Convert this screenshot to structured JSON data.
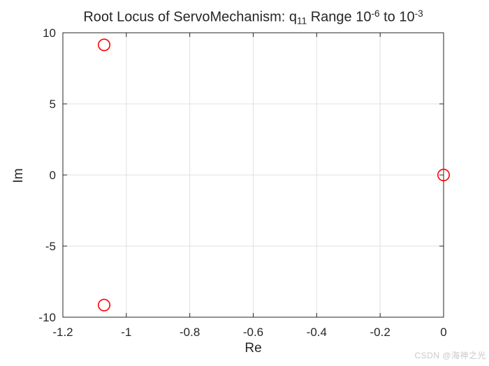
{
  "figure": {
    "background": "#ffffff"
  },
  "title": {
    "plain": "Root Locus of ServoMechanism: q11 Range 10^-6 to 10^-3",
    "segments": [
      {
        "text": "Root Locus of ServoMechanism: q",
        "style": "normal"
      },
      {
        "text": "11",
        "style": "sub"
      },
      {
        "text": " Range 10",
        "style": "normal"
      },
      {
        "text": "-6",
        "style": "sup"
      },
      {
        "text": " to 10",
        "style": "normal"
      },
      {
        "text": "-3",
        "style": "sup"
      }
    ]
  },
  "watermark": {
    "text": "CSDN @海神之光",
    "color": "#c9c9c9"
  },
  "chart_data": {
    "type": "scatter",
    "title": "Root Locus of ServoMechanism: q_{11} Range 10^{-6} to 10^{-3}",
    "xlabel": "Re",
    "ylabel": "Im",
    "xlim": [
      -1.2,
      0
    ],
    "ylim": [
      -10,
      10
    ],
    "xticks": [
      -1.2,
      -1,
      -0.8,
      -0.6,
      -0.4,
      -0.2,
      0
    ],
    "xtick_labels": [
      "-1.2",
      "-1",
      "-0.8",
      "-0.6",
      "-0.4",
      "-0.2",
      "0"
    ],
    "yticks": [
      10,
      5,
      0,
      -5,
      -10
    ],
    "ytick_labels": [
      "10",
      "5",
      "0",
      "-5",
      "-10"
    ],
    "grid": true,
    "legend": "none",
    "series": [
      {
        "name": "closed-loop-poles",
        "marker": "o",
        "marker_color": "#ff0000",
        "marker_size": 8.2,
        "line_style": "none",
        "points": [
          {
            "x": -1.07,
            "y": 9.15
          },
          {
            "x": -1.07,
            "y": -9.15
          },
          {
            "x": 0,
            "y": 0
          }
        ]
      }
    ],
    "colors": {
      "axis": "#262626",
      "grid": "#e0e0e0",
      "tick_label": "#262626",
      "plot_background": "#ffffff"
    }
  }
}
